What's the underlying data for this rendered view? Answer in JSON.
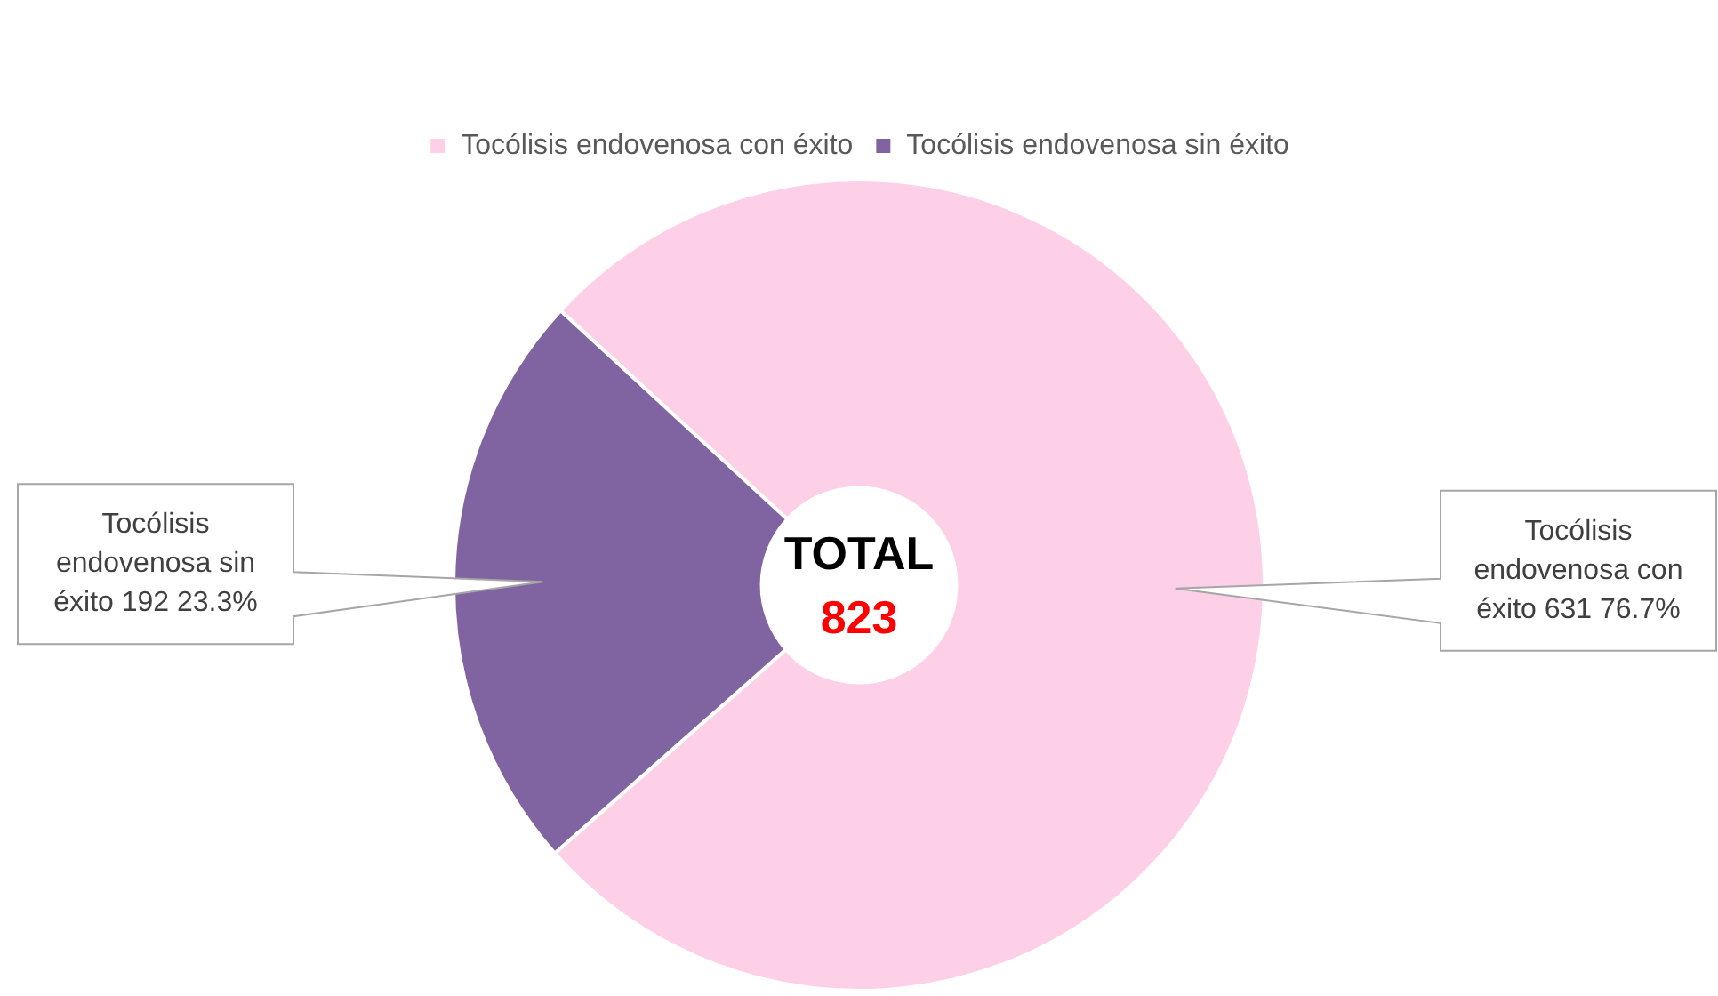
{
  "chart_data": {
    "type": "donut",
    "categories": [
      "Tocólisis endovenosa con éxito",
      "Tocólisis endovenosa sin éxito"
    ],
    "values": [
      631,
      192
    ],
    "colors": [
      "#fdd0e8",
      "#8064a2"
    ],
    "legend": "top",
    "value_labels": [
      "Tocólisis endovenosa con éxito 631 76.7%",
      "Tocólisis endovenosa sin éxito 192 23.3%"
    ],
    "annotations": [
      "TOTAL",
      "823"
    ]
  }
}
